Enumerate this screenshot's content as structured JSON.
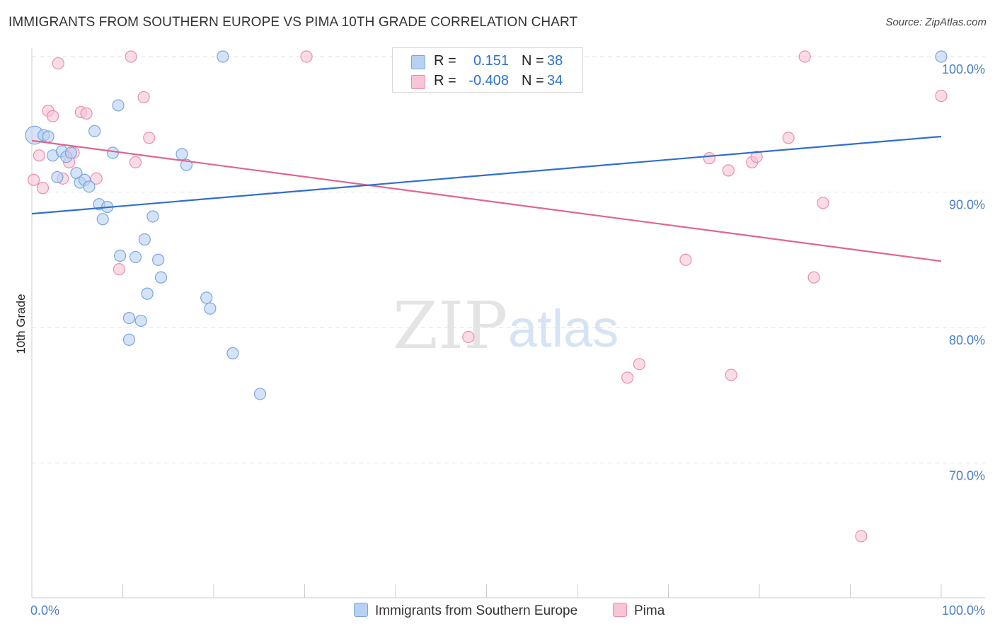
{
  "title": "IMMIGRANTS FROM SOUTHERN EUROPE VS PIMA 10TH GRADE CORRELATION CHART",
  "source": "Source: ZipAtlas.com",
  "watermark": {
    "zip": "ZIP",
    "atlas": "atlas"
  },
  "legend": {
    "series1": {
      "r_label": "R =",
      "r_value": "0.151",
      "n_label": "N =",
      "n_value": "38"
    },
    "series2": {
      "r_label": "R =",
      "r_value": "-0.408",
      "n_label": "N =",
      "n_value": "34"
    }
  },
  "colors": {
    "blue_fill": "#b8d1f3",
    "blue_stroke": "#7aa6de",
    "blue_line": "#2f6fcf",
    "pink_fill": "#f9c5d6",
    "pink_stroke": "#e88fae",
    "pink_line": "#e0668f",
    "grid": "#e2e2e2",
    "axis_text": "#4a7fc9"
  },
  "chart_data": {
    "type": "scatter",
    "title": "IMMIGRANTS FROM SOUTHERN EUROPE VS PIMA 10TH GRADE CORRELATION CHART",
    "xlabel": "",
    "ylabel": "10th Grade",
    "xlim": [
      0,
      100
    ],
    "ylim": [
      60.5,
      101.5
    ],
    "x_tick_labels": [
      "0.0%",
      "100.0%"
    ],
    "y_ticks": [
      100,
      90,
      80,
      70
    ],
    "y_tick_labels": [
      "100.0%",
      "90.0%",
      "80.0%",
      "70.0%"
    ],
    "grid": true,
    "legend_position": "top-center",
    "series": [
      {
        "name": "Immigrants from Southern Europe",
        "color": "#b8d1f3",
        "trend": {
          "x": [
            0,
            100
          ],
          "y": [
            88.4,
            94.1
          ]
        },
        "points": [
          {
            "x": 0.3,
            "y": 94.2,
            "s": 1.6
          },
          {
            "x": 1.3,
            "y": 94.2
          },
          {
            "x": 1.8,
            "y": 94.1
          },
          {
            "x": 2.3,
            "y": 92.7
          },
          {
            "x": 2.8,
            "y": 91.1
          },
          {
            "x": 3.3,
            "y": 93.0
          },
          {
            "x": 3.8,
            "y": 92.6
          },
          {
            "x": 4.3,
            "y": 92.9
          },
          {
            "x": 4.9,
            "y": 91.4
          },
          {
            "x": 5.3,
            "y": 90.7
          },
          {
            "x": 5.8,
            "y": 90.9
          },
          {
            "x": 6.3,
            "y": 90.4
          },
          {
            "x": 6.9,
            "y": 94.5
          },
          {
            "x": 7.4,
            "y": 89.1
          },
          {
            "x": 7.8,
            "y": 88.0
          },
          {
            "x": 8.3,
            "y": 88.9
          },
          {
            "x": 8.9,
            "y": 92.9
          },
          {
            "x": 9.5,
            "y": 96.4
          },
          {
            "x": 9.7,
            "y": 85.3
          },
          {
            "x": 10.7,
            "y": 80.7
          },
          {
            "x": 10.7,
            "y": 79.1
          },
          {
            "x": 11.4,
            "y": 85.2
          },
          {
            "x": 12.0,
            "y": 80.5
          },
          {
            "x": 12.4,
            "y": 86.5
          },
          {
            "x": 12.7,
            "y": 82.5
          },
          {
            "x": 13.3,
            "y": 88.2
          },
          {
            "x": 13.9,
            "y": 85.0
          },
          {
            "x": 14.2,
            "y": 83.7
          },
          {
            "x": 16.5,
            "y": 92.8
          },
          {
            "x": 17.0,
            "y": 92.0
          },
          {
            "x": 19.2,
            "y": 82.2
          },
          {
            "x": 19.6,
            "y": 81.4
          },
          {
            "x": 21.0,
            "y": 100.0
          },
          {
            "x": 22.1,
            "y": 78.1
          },
          {
            "x": 25.1,
            "y": 75.1
          },
          {
            "x": 100.0,
            "y": 100.0
          }
        ]
      },
      {
        "name": "Pima",
        "color": "#f9c5d6",
        "trend": {
          "x": [
            0,
            100
          ],
          "y": [
            93.8,
            84.9
          ]
        },
        "points": [
          {
            "x": 0.2,
            "y": 90.9
          },
          {
            "x": 0.8,
            "y": 92.7
          },
          {
            "x": 1.2,
            "y": 90.3
          },
          {
            "x": 1.8,
            "y": 96.0
          },
          {
            "x": 2.3,
            "y": 95.6
          },
          {
            "x": 2.9,
            "y": 99.5
          },
          {
            "x": 3.4,
            "y": 91.0
          },
          {
            "x": 4.1,
            "y": 92.2
          },
          {
            "x": 4.6,
            "y": 92.9
          },
          {
            "x": 5.4,
            "y": 95.9
          },
          {
            "x": 6.0,
            "y": 95.8
          },
          {
            "x": 7.1,
            "y": 91.0
          },
          {
            "x": 9.6,
            "y": 84.3
          },
          {
            "x": 10.9,
            "y": 100.0
          },
          {
            "x": 11.4,
            "y": 92.2
          },
          {
            "x": 12.3,
            "y": 97.0
          },
          {
            "x": 12.9,
            "y": 94.0
          },
          {
            "x": 30.2,
            "y": 100.0
          },
          {
            "x": 48.0,
            "y": 79.3
          },
          {
            "x": 65.5,
            "y": 76.3
          },
          {
            "x": 66.8,
            "y": 77.3
          },
          {
            "x": 71.9,
            "y": 85.0
          },
          {
            "x": 74.5,
            "y": 92.5
          },
          {
            "x": 76.6,
            "y": 91.6
          },
          {
            "x": 76.9,
            "y": 76.5
          },
          {
            "x": 79.2,
            "y": 92.2
          },
          {
            "x": 79.7,
            "y": 92.6
          },
          {
            "x": 83.2,
            "y": 94.0
          },
          {
            "x": 85.0,
            "y": 100.0
          },
          {
            "x": 86.0,
            "y": 83.7
          },
          {
            "x": 87.0,
            "y": 89.2
          },
          {
            "x": 91.2,
            "y": 64.6
          },
          {
            "x": 100.0,
            "y": 97.1
          }
        ]
      }
    ]
  },
  "bottom_legend": {
    "item1": "Immigrants from Southern Europe",
    "item2": "Pima"
  }
}
